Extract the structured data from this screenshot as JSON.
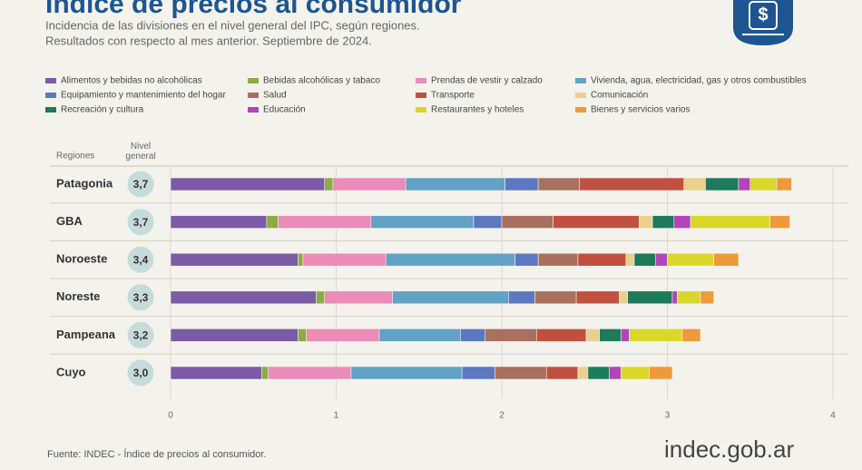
{
  "chart_data": {
    "type": "stacked-bar",
    "title": "Índice de precios al consumidor",
    "subtitle": [
      "Incidencia de las divisiones en el nivel general del IPC, según regiones.",
      "Resultados con respecto al mes anterior. Septiembre de 2024."
    ],
    "category_header": "Regiones",
    "categories": [
      "Patagonia",
      "GBA",
      "Noroeste",
      "Noreste",
      "Pampeana",
      "Cuyo"
    ],
    "general_level": {
      "title": "Nivel general",
      "values": [
        3.7,
        3.7,
        3.4,
        3.3,
        3.2,
        3.0
      ],
      "value_labels": [
        "3,7",
        "3,7",
        "3,4",
        "3,3",
        "3,2",
        "3,0"
      ]
    },
    "series": [
      {
        "name": "Alimentos y bebidas no alcohólicas",
        "color": "#7b5aa6",
        "values": [
          0.93,
          0.58,
          0.77,
          0.88,
          0.77,
          0.55
        ]
      },
      {
        "name": "Bebidas alcohólicas y tabaco",
        "color": "#8cab45",
        "values": [
          0.05,
          0.07,
          0.03,
          0.05,
          0.05,
          0.04
        ]
      },
      {
        "name": "Prendas de vestir y calzado",
        "color": "#ea8bb8",
        "values": [
          0.44,
          0.56,
          0.5,
          0.41,
          0.44,
          0.5
        ]
      },
      {
        "name": "Vivienda, agua, electricidad, gas y otros combustibles",
        "color": "#62a2c4",
        "values": [
          0.6,
          0.62,
          0.78,
          0.7,
          0.49,
          0.67
        ]
      },
      {
        "name": "Equipamiento y mantenimiento del hogar",
        "color": "#5b78c0",
        "values": [
          0.2,
          0.17,
          0.14,
          0.16,
          0.15,
          0.2
        ]
      },
      {
        "name": "Salud",
        "color": "#a8705f",
        "values": [
          0.25,
          0.31,
          0.24,
          0.25,
          0.31,
          0.31
        ]
      },
      {
        "name": "Transporte",
        "color": "#c0503f",
        "values": [
          0.63,
          0.52,
          0.29,
          0.26,
          0.3,
          0.19
        ]
      },
      {
        "name": "Comunicación",
        "color": "#ebcf8f",
        "values": [
          0.13,
          0.08,
          0.05,
          0.05,
          0.08,
          0.06
        ]
      },
      {
        "name": "Recreación y cultura",
        "color": "#1d7a5a",
        "values": [
          0.2,
          0.13,
          0.13,
          0.27,
          0.13,
          0.13
        ]
      },
      {
        "name": "Educación",
        "color": "#b044b8",
        "values": [
          0.07,
          0.1,
          0.07,
          0.03,
          0.05,
          0.07
        ]
      },
      {
        "name": "Restaurantes y hoteles",
        "color": "#d9d82a",
        "values": [
          0.16,
          0.48,
          0.28,
          0.14,
          0.32,
          0.17
        ]
      },
      {
        "name": "Bienes y servicios varios",
        "color": "#ee9a3a",
        "values": [
          0.09,
          0.12,
          0.15,
          0.08,
          0.11,
          0.14
        ]
      }
    ],
    "xlim": [
      0,
      4
    ],
    "xticks": [
      0,
      1,
      2,
      3,
      4
    ],
    "grid": true,
    "source": "Fuente: INDEC - Índice de precios al consumidor.",
    "logo": "indec.gob.ar"
  }
}
